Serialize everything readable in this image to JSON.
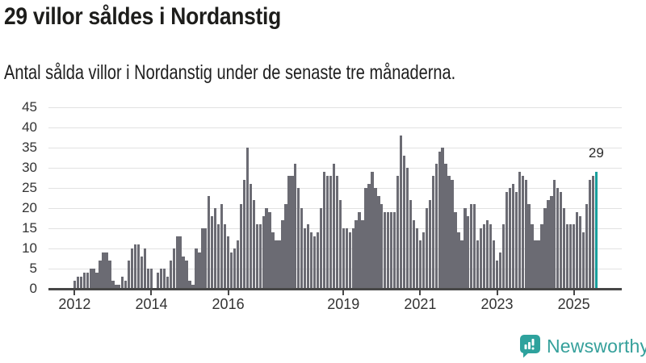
{
  "header": {
    "title": "29 villor såldes i Nordanstig",
    "subtitle": "Antal sålda villor i Nordanstig under de senaste tre månaderna."
  },
  "annotation": {
    "label": "29"
  },
  "logo": {
    "text": "Newsworthy",
    "icon": "newsworthy-speech-bubble-bar-chart-icon"
  },
  "colors": {
    "bar": "#6b6b73",
    "highlight": "#189f9d",
    "grid": "#e2e2e2",
    "axis": "#474747",
    "tick_text": "#333333",
    "title_text": "#1d1d1b",
    "logo_teal": "#35a09b"
  },
  "chart_data": {
    "type": "bar",
    "title": "29 villor såldes i Nordanstig",
    "subtitle": "Antal sålda villor i Nordanstig under de senaste tre månaderna.",
    "x_frequency": "monthly",
    "x_start": "2012-01",
    "x_end": "2025-08",
    "start_year": 2012,
    "x_tick_labels": [
      "2012",
      "2014",
      "2016",
      "2019",
      "2021",
      "2023",
      "2025"
    ],
    "y_ticks": [
      0,
      5,
      10,
      15,
      20,
      25,
      30,
      35,
      40,
      45
    ],
    "ylim": [
      0,
      45
    ],
    "grid": true,
    "legend": false,
    "highlight_last": true,
    "highlight_label": "29",
    "values": [
      2,
      3,
      3,
      4,
      4,
      5,
      5,
      4,
      7,
      9,
      9,
      7,
      2,
      1,
      1,
      3,
      2,
      7,
      10,
      11,
      11,
      8,
      10,
      5,
      5,
      0,
      4,
      5,
      5,
      3,
      7,
      10,
      13,
      13,
      8,
      7,
      2,
      1,
      10,
      9,
      15,
      15,
      23,
      18,
      20,
      16,
      21,
      16,
      13,
      9,
      10,
      12,
      21,
      27,
      35,
      26,
      22,
      16,
      16,
      18,
      20,
      19,
      14,
      12,
      12,
      17,
      21,
      28,
      28,
      31,
      25,
      20,
      15,
      16,
      14,
      13,
      14,
      20,
      29,
      28,
      28,
      31,
      28,
      22,
      15,
      15,
      14,
      15,
      17,
      19,
      17,
      25,
      26,
      29,
      25,
      23,
      21,
      19,
      19,
      19,
      19,
      28,
      38,
      33,
      30,
      22,
      17,
      15,
      12,
      14,
      20,
      22,
      28,
      31,
      34,
      35,
      31,
      28,
      27,
      19,
      14,
      12,
      20,
      18,
      21,
      21,
      12,
      15,
      16,
      17,
      16,
      12,
      7,
      9,
      16,
      24,
      25,
      26,
      24,
      29,
      28,
      27,
      21,
      16,
      12,
      12,
      16,
      20,
      22,
      23,
      27,
      25,
      24,
      20,
      16,
      16,
      16,
      19,
      18,
      14,
      21,
      27,
      28,
      29
    ]
  }
}
